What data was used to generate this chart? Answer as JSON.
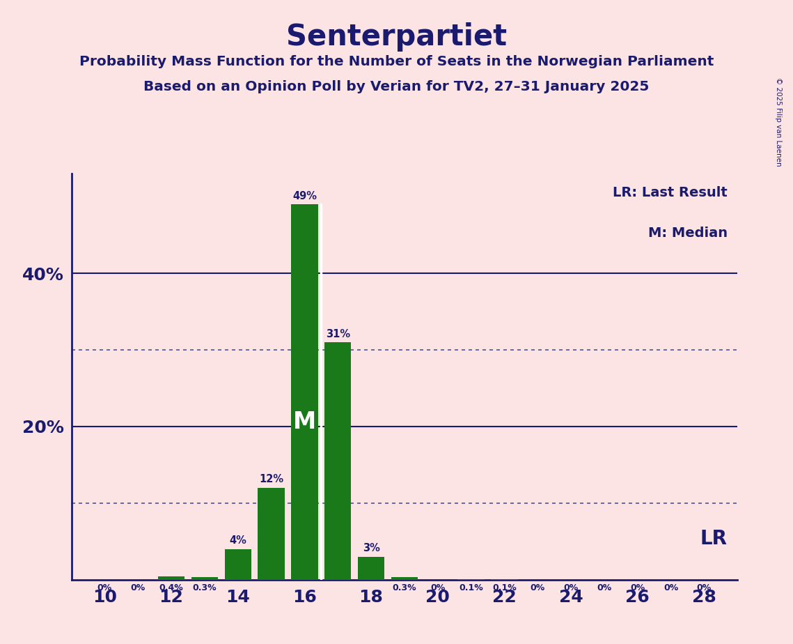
{
  "title": "Senterpartiet",
  "subtitle1": "Probability Mass Function for the Number of Seats in the Norwegian Parliament",
  "subtitle2": "Based on an Opinion Poll by Verian for TV2, 27–31 January 2025",
  "copyright": "© 2025 Filip van Laenen",
  "seats": [
    10,
    11,
    12,
    13,
    14,
    15,
    16,
    17,
    18,
    19,
    20,
    21,
    22,
    23,
    24,
    25,
    26,
    27,
    28
  ],
  "probabilities": [
    0.0,
    0.0,
    0.4,
    0.3,
    4.0,
    12.0,
    49.0,
    31.0,
    3.0,
    0.3,
    0.0,
    0.1,
    0.1,
    0.0,
    0.0,
    0.0,
    0.0,
    0.0,
    0.0
  ],
  "labels": [
    "0%",
    "0%",
    "0.4%",
    "0.3%",
    "4%",
    "12%",
    "49%",
    "31%",
    "3%",
    "0.3%",
    "0%",
    "0.1%",
    "0.1%",
    "0%",
    "0%",
    "0%",
    "0%",
    "0%",
    "0%"
  ],
  "bar_color": "#1a7a1a",
  "background_color": "#fce4e4",
  "text_color": "#1a1a6e",
  "grid_color": "#1a1a6e",
  "dotted_grid_color": "#4455aa",
  "median_seat": 16,
  "last_result_seat": 19,
  "solid_gridlines": [
    20,
    40
  ],
  "dotted_gridlines": [
    10,
    30
  ],
  "ymax": 53,
  "xtick_seats": [
    10,
    12,
    14,
    16,
    18,
    20,
    22,
    24,
    26,
    28
  ],
  "lr_label": "LR",
  "lr_legend": "LR: Last Result",
  "m_legend": "M: Median",
  "m_label": "M",
  "bar_width": 0.8
}
